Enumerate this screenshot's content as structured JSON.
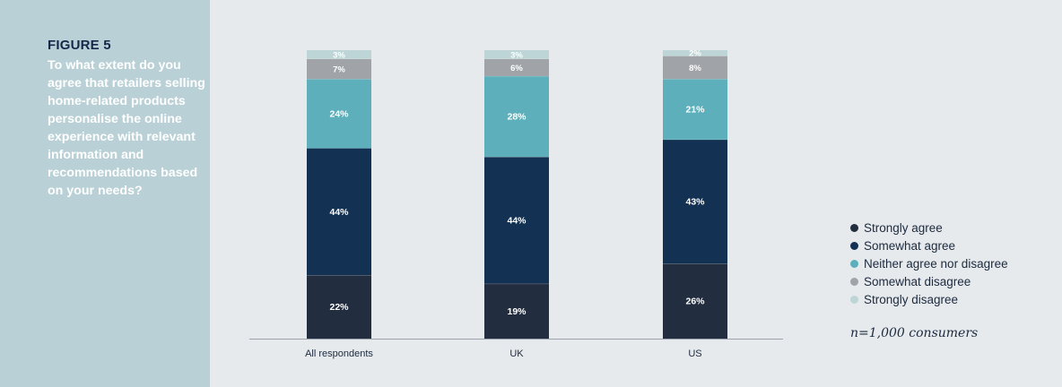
{
  "figure": {
    "label": "FIGURE 5",
    "question": "To what extent do you agree that retailers selling home-related products personalise the online experience with relevant information and recommendations based on your needs?"
  },
  "chart_data": {
    "type": "bar",
    "stacked": true,
    "unit": "%",
    "categories": [
      "All respondents",
      "UK",
      "US"
    ],
    "series": [
      {
        "name": "Strongly agree",
        "color": "#232d40",
        "values": [
          22,
          19,
          26
        ],
        "labels": [
          "22%",
          "19%",
          "26%"
        ]
      },
      {
        "name": "Somewhat agree",
        "color": "#133152",
        "values": [
          44,
          44,
          43
        ],
        "labels": [
          "44%",
          "44%",
          "43%"
        ]
      },
      {
        "name": "Neither agree nor disagree",
        "color": "#5db0bb",
        "values": [
          24,
          28,
          21
        ],
        "labels": [
          "24%",
          "28%",
          "21%"
        ]
      },
      {
        "name": "Somewhat disagree",
        "color": "#a0a4a8",
        "values": [
          7,
          6,
          8
        ],
        "labels": [
          "7%",
          "6%",
          "8%"
        ]
      },
      {
        "name": "Strongly disagree",
        "color": "#bdd5d6",
        "values": [
          3,
          3,
          2
        ],
        "labels": [
          "3%",
          "3%",
          "2%"
        ]
      }
    ],
    "ylim": [
      0,
      100
    ],
    "note": "n=1,000 consumers"
  }
}
